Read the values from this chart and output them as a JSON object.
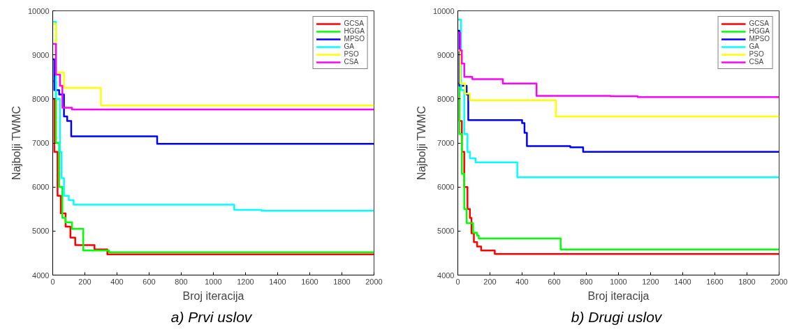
{
  "chart_data": [
    {
      "type": "step",
      "title": "a)  Prvi uslov",
      "xlabel": "Broj iteracija",
      "ylabel": "Najbolji TWMC",
      "xlim": [
        0,
        2000
      ],
      "ylim": [
        4000,
        10000
      ],
      "xticks": [
        0,
        200,
        400,
        600,
        800,
        1000,
        1200,
        1400,
        1600,
        1800,
        2000
      ],
      "yticks": [
        4000,
        5000,
        6000,
        7000,
        8000,
        9000,
        10000
      ],
      "legend": "top right",
      "grid": false,
      "series": [
        {
          "name": "GCSA",
          "color": "#ff0000",
          "x": [
            0,
            10,
            30,
            50,
            80,
            110,
            140,
            260,
            340,
            2000
          ],
          "values": [
            8000,
            6800,
            5800,
            5400,
            5100,
            4850,
            4680,
            4580,
            4470,
            4470
          ]
        },
        {
          "name": "HGGA",
          "color": "#00ff00",
          "x": [
            0,
            20,
            40,
            60,
            80,
            120,
            190,
            350,
            2000
          ],
          "values": [
            8400,
            7000,
            6000,
            5300,
            5200,
            5050,
            4560,
            4520,
            4520
          ]
        },
        {
          "name": "MPSO",
          "color": "#0000ff",
          "x": [
            0,
            10,
            40,
            70,
            90,
            115,
            650,
            2000
          ],
          "values": [
            8900,
            8200,
            8100,
            7600,
            7500,
            7150,
            6980,
            6980
          ]
        },
        {
          "name": "GA",
          "color": "#00ffff",
          "x": [
            0,
            20,
            45,
            55,
            70,
            100,
            130,
            1130,
            1300,
            2000
          ],
          "values": [
            9750,
            8000,
            6800,
            6200,
            5800,
            5700,
            5600,
            5480,
            5460,
            5460
          ]
        },
        {
          "name": "PSO",
          "color": "#ffff00",
          "x": [
            0,
            20,
            70,
            300,
            2000
          ],
          "values": [
            9700,
            8600,
            8250,
            7850,
            7850
          ]
        },
        {
          "name": "CSA",
          "color": "#ff00ff",
          "x": [
            0,
            20,
            45,
            60,
            120,
            2000
          ],
          "values": [
            9250,
            8550,
            8300,
            7800,
            7760,
            7760
          ]
        }
      ]
    },
    {
      "type": "step",
      "title": "b)  Drugi uslov",
      "xlabel": "Broj iteracija",
      "ylabel": "Najbolji TWMC",
      "xlim": [
        0,
        2000
      ],
      "ylim": [
        4000,
        10000
      ],
      "xticks": [
        0,
        200,
        400,
        600,
        800,
        1000,
        1200,
        1400,
        1600,
        1800,
        2000
      ],
      "yticks": [
        4000,
        5000,
        6000,
        7000,
        8000,
        9000,
        10000
      ],
      "legend": "top right",
      "grid": false,
      "series": [
        {
          "name": "GCSA",
          "color": "#ff0000",
          "x": [
            0,
            10,
            25,
            40,
            60,
            75,
            85,
            100,
            120,
            145,
            230,
            2000
          ],
          "values": [
            8000,
            7500,
            6800,
            6000,
            5500,
            5300,
            4950,
            4750,
            4650,
            4560,
            4480,
            4480
          ]
        },
        {
          "name": "HGGA",
          "color": "#00ff00",
          "x": [
            0,
            10,
            25,
            40,
            55,
            95,
            120,
            130,
            640,
            2000
          ],
          "values": [
            8350,
            7200,
            6300,
            5500,
            5180,
            4960,
            4900,
            4830,
            4580,
            4580
          ]
        },
        {
          "name": "MPSO",
          "color": "#0000ff",
          "x": [
            0,
            10,
            55,
            65,
            400,
            415,
            430,
            700,
            780,
            2000
          ],
          "values": [
            9550,
            8300,
            8100,
            7520,
            7450,
            7230,
            6930,
            6900,
            6800,
            6800
          ]
        },
        {
          "name": "GA",
          "color": "#00ffff",
          "x": [
            0,
            20,
            40,
            60,
            75,
            110,
            370,
            2000
          ],
          "values": [
            9800,
            8200,
            7200,
            6800,
            6650,
            6560,
            6220,
            6220
          ]
        },
        {
          "name": "PSO",
          "color": "#ffff00",
          "x": [
            0,
            15,
            45,
            75,
            610,
            2000
          ],
          "values": [
            9100,
            8350,
            8120,
            7970,
            7600,
            7600
          ]
        },
        {
          "name": "CSA",
          "color": "#ff00ff",
          "x": [
            0,
            15,
            25,
            40,
            90,
            280,
            490,
            950,
            1120,
            2000
          ],
          "values": [
            9500,
            9100,
            8800,
            8500,
            8450,
            8350,
            8070,
            8060,
            8040,
            8040
          ]
        }
      ]
    }
  ]
}
